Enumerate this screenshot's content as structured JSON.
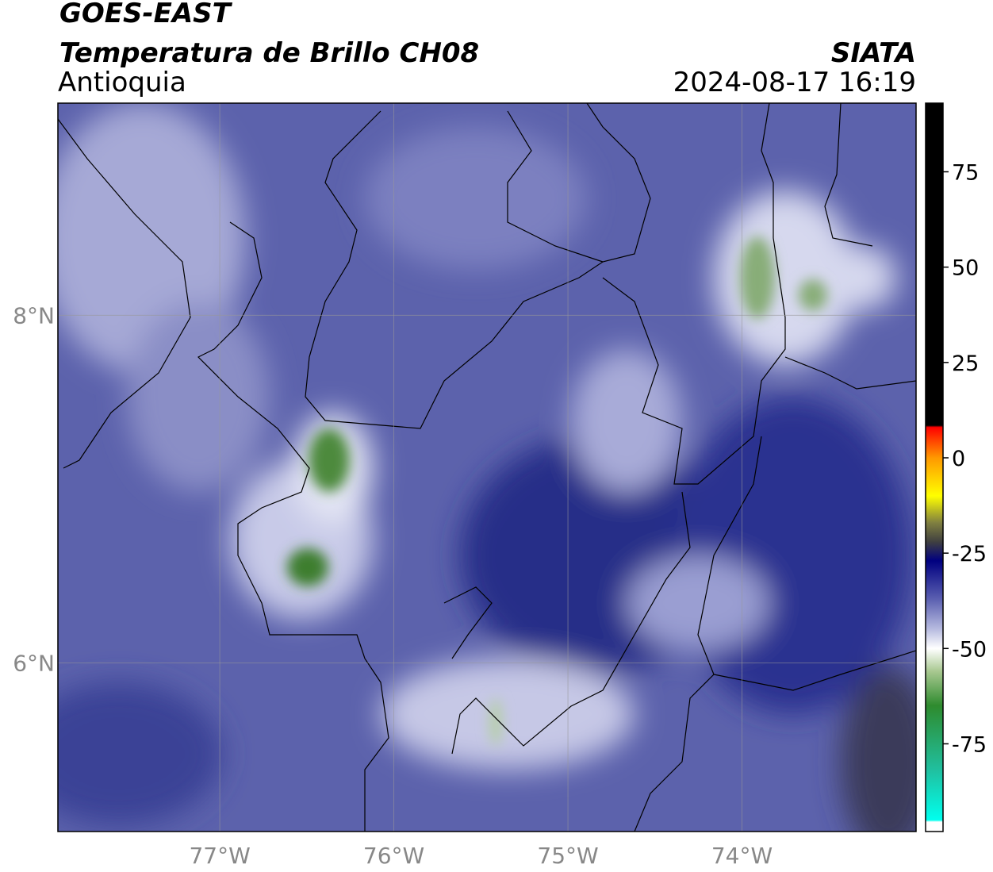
{
  "header": {
    "title": "GOES-EAST",
    "subtitle": "Temperatura de Brillo CH08",
    "region": "Antioquia",
    "source": "SIATA",
    "datetime": "2024-08-17 16:19"
  },
  "map": {
    "lonlim": [
      -77.93,
      -73.0
    ],
    "latlim": [
      5.03,
      9.22
    ],
    "lon_ticks": [
      {
        "value": -77,
        "label": "77°W"
      },
      {
        "value": -76,
        "label": "76°W"
      },
      {
        "value": -75,
        "label": "75°W"
      },
      {
        "value": -74,
        "label": "74°W"
      }
    ],
    "lat_ticks": [
      {
        "value": 8,
        "label": "8°N"
      },
      {
        "value": 6,
        "label": "6°N"
      }
    ],
    "grid": true
  },
  "colorbar": {
    "lim": [
      -98,
      93
    ],
    "ticks": [
      75,
      50,
      25,
      0,
      -25,
      -50,
      -75
    ],
    "colormap": [
      {
        "value": 93,
        "color": "#000000"
      },
      {
        "value": 8.5,
        "color": "#000000"
      },
      {
        "value": 8,
        "color": "#ff0000"
      },
      {
        "value": 0,
        "color": "#ff9900"
      },
      {
        "value": -10,
        "color": "#ffff00"
      },
      {
        "value": -17,
        "color": "#808040"
      },
      {
        "value": -22,
        "color": "#404040"
      },
      {
        "value": -27,
        "color": "#000080"
      },
      {
        "value": -37,
        "color": "#5a5fb0"
      },
      {
        "value": -45,
        "color": "#b8bce0"
      },
      {
        "value": -50,
        "color": "#ffffff"
      },
      {
        "value": -56,
        "color": "#a8c890"
      },
      {
        "value": -65,
        "color": "#2e8b2e"
      },
      {
        "value": -82,
        "color": "#20c0a0"
      },
      {
        "value": -95,
        "color": "#00ffee"
      },
      {
        "value": -95.5,
        "color": "#ffffff"
      },
      {
        "value": -98,
        "color": "#ffffff"
      }
    ]
  }
}
